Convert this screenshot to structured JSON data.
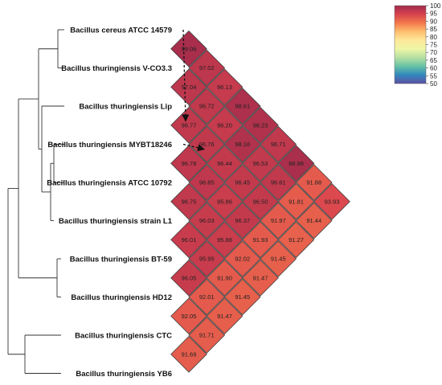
{
  "chart_data": {
    "type": "heatmap",
    "title": "",
    "labels": [
      "Bacillus cereus ATCC 14579",
      "Bacillus thuringiensis V-CO3.3",
      "Bacillus thuringiensis Lip",
      "Bacillus thuringiensis MYBT18246",
      "Bacillus thuringiensis ATCC 10792",
      "Bacillus thuringiensis strain L1",
      "Bacillus thuringiensis BT-59",
      "Bacillus thuringiensis HD12",
      "Bacillus thuringiensis CTC",
      "Bacillus thuringiensis YB6"
    ],
    "pairwise_values": {
      "pairs_1_2_3_4_5_6_7_8_9_10_for_row_0": [
        99.06,
        97.04,
        96.77,
        96.78,
        96.75,
        96.01,
        96.05,
        92.05,
        91.69
      ],
      "row_1": [
        97.02,
        96.72,
        96.76,
        96.85,
        95.95,
        92.01,
        91.71
      ],
      "row_2": [
        96.13,
        96.2,
        96.03,
        95.88,
        91.9,
        91.47
      ],
      "row_3": [
        98.61,
        96.44,
        95.86,
        96.37,
        92.02,
        91.45
      ],
      "row_4": [
        98.16,
        96.45,
        96.5,
        91.93,
        91.47
      ],
      "row_5": [
        98.23,
        96.53,
        96.61,
        91.97,
        91.45
      ],
      "row_6": [
        96.71,
        98.98,
        91.81,
        91.27
      ],
      "row_7": [
        91.88,
        91.44
      ],
      "row_8": [
        93.93
      ]
    },
    "matrix_upper": [
      [
        null,
        99.06,
        97.02,
        96.13,
        98.61,
        98.23,
        96.71,
        98.98,
        91.88,
        93.93
      ],
      [
        null,
        null,
        97.04,
        96.72,
        96.2,
        98.16,
        96.53,
        96.61,
        91.81,
        91.44
      ],
      [
        null,
        null,
        null,
        96.77,
        96.76,
        96.44,
        96.45,
        96.5,
        91.97,
        91.27
      ],
      [
        null,
        null,
        null,
        null,
        96.78,
        96.85,
        95.86,
        96.37,
        91.93,
        91.45
      ],
      [
        null,
        null,
        null,
        null,
        null,
        96.75,
        96.03,
        95.88,
        92.02,
        91.47
      ],
      [
        null,
        null,
        null,
        null,
        null,
        null,
        96.01,
        95.95,
        91.9,
        91.45
      ],
      [
        null,
        null,
        null,
        null,
        null,
        null,
        null,
        96.05,
        92.01,
        91.47
      ],
      [
        null,
        null,
        null,
        null,
        null,
        null,
        null,
        null,
        92.05,
        91.71
      ],
      [
        null,
        null,
        null,
        null,
        null,
        null,
        null,
        null,
        null,
        91.69
      ],
      [
        null,
        null,
        null,
        null,
        null,
        null,
        null,
        null,
        null,
        null
      ]
    ],
    "colorbar": {
      "min": 50,
      "max": 100,
      "ticks": [
        "100",
        "95",
        "90",
        "85",
        "80",
        "75",
        "70",
        "65",
        "60",
        "55",
        "50"
      ],
      "colors": [
        "#9e2a4b",
        "#d8434e",
        "#f3784b",
        "#fdbf6f",
        "#fee89a",
        "#eef6a6",
        "#b5dfa3",
        "#66c2a5",
        "#3288bd",
        "#5e4fa2"
      ]
    },
    "arrows": [
      {
        "from": [
          0,
          2
        ],
        "to": [
          2,
          3
        ]
      },
      {
        "from": [
          3,
          4
        ],
        "to": [
          2,
          4
        ]
      }
    ]
  }
}
